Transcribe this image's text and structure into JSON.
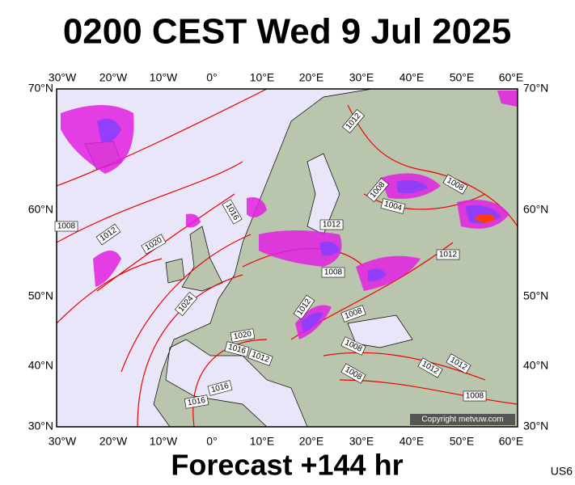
{
  "title": "0200 CEST Wed 9 Jul 2025",
  "footer": "Forecast +144 hr",
  "model": "US6",
  "copyright": "Copyright metvuw.com",
  "map": {
    "longitude_labels": [
      "30°W",
      "20°W",
      "10°W",
      "0°",
      "10°E",
      "20°E",
      "30°E",
      "40°E",
      "50°E",
      "60°E"
    ],
    "latitude_labels": [
      "70°N",
      "60°N",
      "50°N",
      "40°N",
      "30°N"
    ],
    "isobar_labels": [
      "1012",
      "1008",
      "1004",
      "1008",
      "1012",
      "1016",
      "1012",
      "1020",
      "1008",
      "1012",
      "1008",
      "1024",
      "1012",
      "1008",
      "1020",
      "1016",
      "1012",
      "1008",
      "1008",
      "1012",
      "1012",
      "1016",
      "1016",
      "1008"
    ]
  }
}
